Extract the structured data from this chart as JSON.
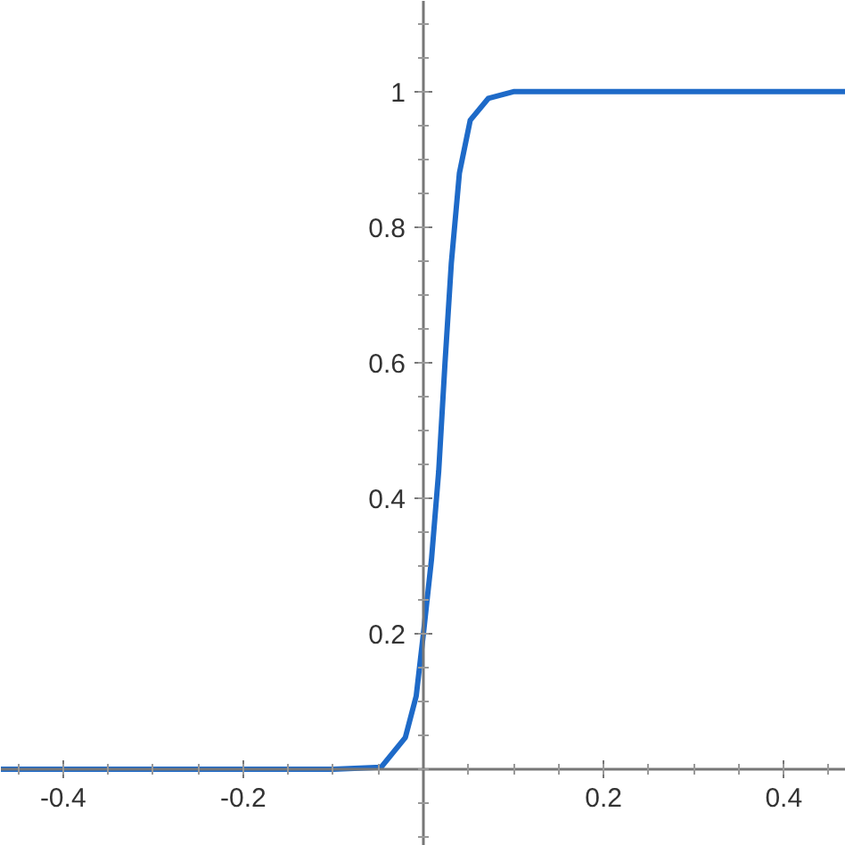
{
  "chart_data": {
    "type": "line",
    "x": [
      -0.469,
      -0.1,
      -0.047,
      -0.02,
      -0.008,
      0,
      0.009,
      0.017,
      0.024,
      0.031,
      0.04,
      0.052,
      0.072,
      0.1,
      0.2,
      0.469
    ],
    "series": [
      {
        "color": "#1e6ac8",
        "values": [
          0,
          0,
          0.003,
          0.047,
          0.108,
          0.2,
          0.31,
          0.44,
          0.6,
          0.747,
          0.88,
          0.958,
          0.99,
          1,
          1,
          1
        ]
      }
    ],
    "xlim": [
      -0.469,
      0.469
    ],
    "ylim": [
      -0.113,
      1.134
    ],
    "xticks": [
      -0.4,
      -0.2,
      0.2,
      0.4
    ],
    "yticks": [
      0.2,
      0.4,
      0.6,
      0.8,
      1
    ],
    "grid": false,
    "marker": "none",
    "line_style": "solid"
  }
}
